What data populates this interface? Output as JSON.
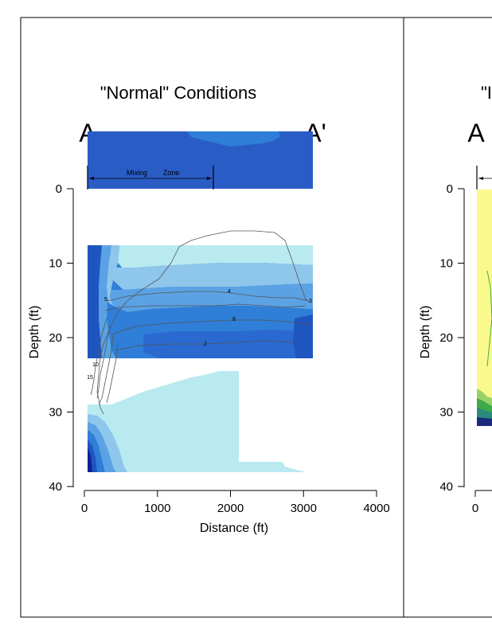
{
  "chart_data": [
    {
      "type": "heatmap",
      "title": "\"Normal\"   Conditions",
      "section_start": "A",
      "section_end": "A'",
      "annotation": {
        "text_left": "Mixing",
        "text_right": "Zone"
      },
      "xlabel": "Distance (ft)",
      "ylabel": "Depth (ft)",
      "xlim": [
        0,
        4000
      ],
      "ylim": [
        40,
        0
      ],
      "x_ticks": [
        "0",
        "1000",
        "2000",
        "3000",
        "4000"
      ],
      "y_ticks": [
        "0",
        "10",
        "20",
        "30",
        "40"
      ],
      "x_tick_values": [
        0,
        1000,
        2000,
        3000,
        4000
      ],
      "y_tick_values": [
        0,
        10,
        20,
        30,
        40
      ],
      "colors": {
        "c1": "#b8eaf0",
        "c2": "#8ec6ec",
        "c3": "#5aa2e4",
        "c4": "#2f7ed8",
        "c5": "#1e55c0",
        "c6": "#10209a"
      },
      "contour_labels": [
        "5",
        "4",
        "3",
        "8",
        "2",
        "10",
        "15"
      ]
    },
    {
      "type": "heatmap",
      "title": "\"I",
      "section_start": "A",
      "ylabel": "Depth (ft)",
      "y_ticks": [
        "0",
        "10",
        "20",
        "30",
        "40"
      ],
      "y_tick_values": [
        0,
        10,
        20,
        30,
        40
      ],
      "x_ticks": [
        "0"
      ],
      "x_tick_values": [
        0
      ],
      "colors": {
        "yellow": "#fafa8c",
        "green_light": "#9ad26a",
        "green": "#3ea84a",
        "teal": "#2a8a7a",
        "navy": "#1a2a7a"
      }
    }
  ]
}
